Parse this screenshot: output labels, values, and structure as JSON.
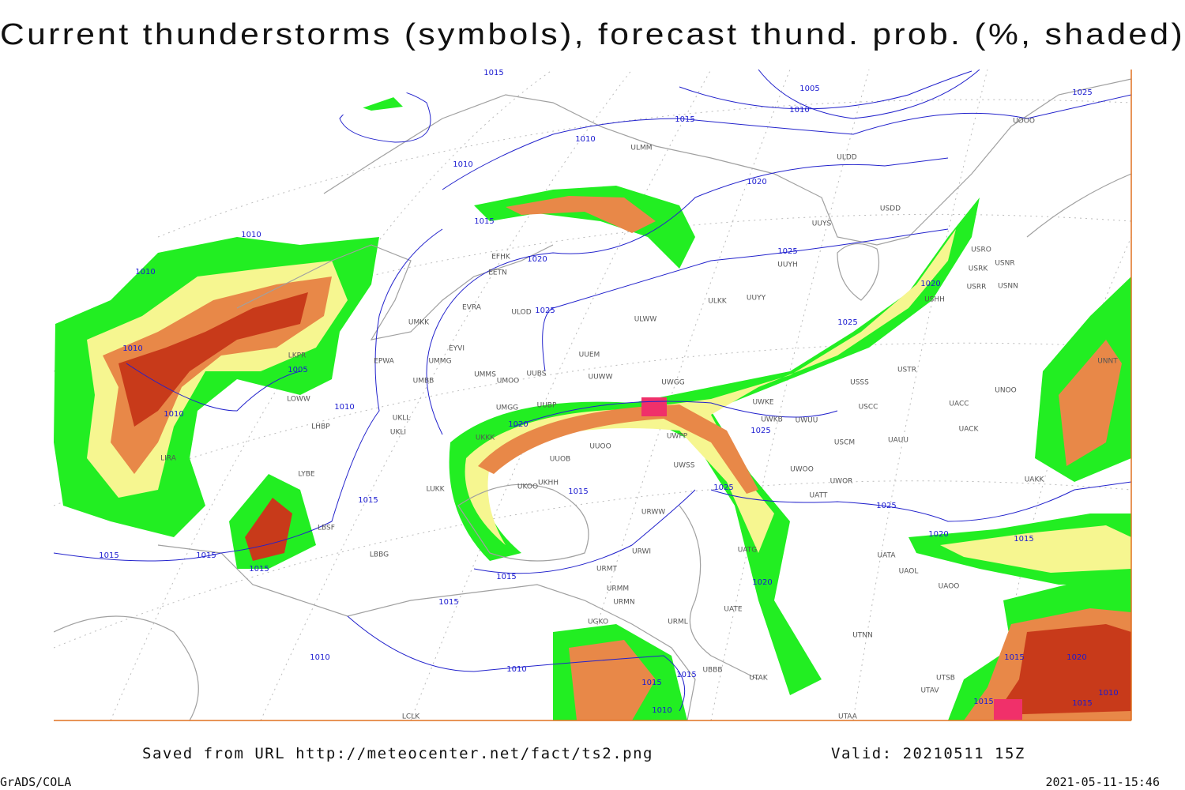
{
  "header": {
    "title": "Current thunderstorms (symbols), forecast thund. prob. (%, shaded)"
  },
  "footer": {
    "source": "Saved from URL http://meteocenter.net/fact/ts2.png",
    "valid": "Valid: 20210511 15Z",
    "software": "GrADS/COLA",
    "timestamp": "2021-05-11-15:46"
  },
  "isobars": [
    1015,
    1005,
    1010,
    1015,
    1010,
    1010,
    1020,
    1015,
    1010,
    1025,
    1020,
    1010,
    1020,
    1025,
    1025,
    1010,
    1005,
    1010,
    1010,
    1020,
    1025,
    1015,
    1015,
    1025,
    1025,
    1020,
    1015,
    1015,
    1015,
    1015,
    1015,
    1020,
    1015,
    1010,
    1010,
    1015,
    1015,
    1010,
    1015,
    1020,
    1015,
    1015,
    1010,
    1025
  ],
  "stations": [
    "ULMM",
    "ULDD",
    "USDD",
    "UUYS",
    "EFHK",
    "EETN",
    "UUYH",
    "ULKK",
    "UUYY",
    "EVRA",
    "ULOD",
    "ULWW",
    "UMKK",
    "EYVI",
    "UUEM",
    "EPWA",
    "UMMG",
    "UMMS",
    "UMOO",
    "UUBS",
    "UUWW",
    "UMBB",
    "UWGG",
    "USSS",
    "USTR",
    "UNOO",
    "UWKE",
    "USCC",
    "UACC",
    "UMGG",
    "UUBP",
    "UWKB",
    "UWUU",
    "UACK",
    "UKLL",
    "UKLI",
    "LHBP",
    "UKKK",
    "UUOO",
    "UWPP",
    "USCM",
    "UAUU",
    "UUOB",
    "LYBE",
    "UWSS",
    "UWOO",
    "UAKK",
    "LUKK",
    "UKOO",
    "UKHH",
    "UWOR",
    "UATT",
    "URWW",
    "URWI",
    "UATG",
    "UATA",
    "UAOL",
    "UAOO",
    "URMT",
    "URMM",
    "URMN",
    "UATE",
    "URML",
    "UGKO",
    "UTNN",
    "UBBB",
    "UTAK",
    "UTSB",
    "UTAV",
    "UTAA",
    "LCLK",
    "LIRA",
    "LOWW",
    "LKPR",
    "LBSF",
    "LBBG",
    "UNNT",
    "USRO",
    "USRK",
    "USNR",
    "USRR",
    "USNN",
    "USHH",
    "UOOO"
  ]
}
